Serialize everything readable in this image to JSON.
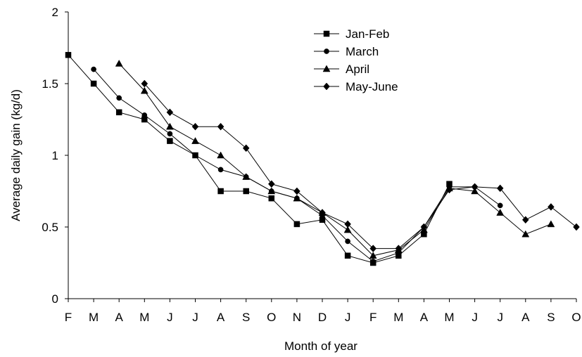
{
  "chart_data": {
    "type": "line",
    "title": "",
    "xlabel": "Month of year",
    "ylabel": "Average daily gain (kg/d)",
    "categories": [
      "F",
      "M",
      "A",
      "M",
      "J",
      "J",
      "A",
      "S",
      "O",
      "N",
      "D",
      "J",
      "F",
      "M",
      "A",
      "M",
      "J",
      "J",
      "A",
      "S",
      "O"
    ],
    "ylim": [
      0,
      2
    ],
    "yticks": [
      "0",
      "0.5",
      "1",
      "1.5",
      "2"
    ],
    "grid": false,
    "legend_position": "top-center",
    "series": [
      {
        "name": "Jan-Feb",
        "marker": "square",
        "values": [
          1.7,
          1.5,
          1.3,
          1.25,
          1.1,
          1.0,
          0.75,
          0.75,
          0.7,
          0.52,
          0.55,
          0.3,
          0.25,
          0.3,
          0.45,
          0.8,
          null,
          null,
          null,
          null,
          null
        ]
      },
      {
        "name": "March",
        "marker": "circle",
        "values": [
          null,
          1.6,
          1.4,
          1.28,
          1.15,
          1.0,
          0.9,
          0.85,
          0.75,
          0.7,
          0.58,
          0.4,
          0.26,
          0.32,
          0.5,
          0.78,
          0.78,
          0.65,
          null,
          null,
          null
        ]
      },
      {
        "name": "April",
        "marker": "triangle",
        "values": [
          null,
          null,
          1.64,
          1.45,
          1.2,
          1.1,
          1.0,
          0.85,
          0.75,
          0.7,
          0.6,
          0.48,
          0.3,
          0.34,
          0.48,
          0.77,
          0.75,
          0.6,
          0.45,
          0.52,
          null
        ]
      },
      {
        "name": "May-June",
        "marker": "diamond",
        "values": [
          null,
          null,
          null,
          1.5,
          1.3,
          1.2,
          1.2,
          1.05,
          0.8,
          0.75,
          0.6,
          0.52,
          0.35,
          0.35,
          0.5,
          0.76,
          0.78,
          0.77,
          0.55,
          0.64,
          0.5
        ]
      }
    ]
  }
}
